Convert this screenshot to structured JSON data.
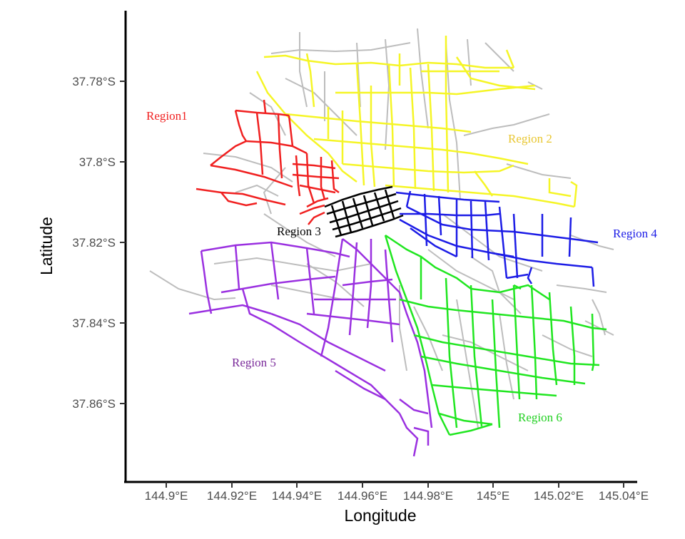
{
  "axes": {
    "xlabel": "Longitude",
    "ylabel": "Latitude",
    "x_ticks": [
      "144.9°E",
      "144.92°E",
      "144.94°E",
      "144.96°E",
      "144.98°E",
      "145°E",
      "145.02°E",
      "145.04°E"
    ],
    "y_ticks": [
      "37.78°S",
      "37.8°S",
      "37.82°S",
      "37.84°S",
      "37.86°S"
    ]
  },
  "regions": [
    {
      "label": "Region1",
      "color": "#f02020"
    },
    {
      "label": "Region 2",
      "color": "#f5f526"
    },
    {
      "label": "Region 3",
      "color": "#000000"
    },
    {
      "label": "Region 4",
      "color": "#1c1ce6"
    },
    {
      "label": "Region 5",
      "color": "#9a30e0"
    },
    {
      "label": "Region 6",
      "color": "#20e620"
    }
  ],
  "label_colors": {
    "Region1": "#f02020",
    "Region 2": "#e8c630",
    "Region 3": "#000000",
    "Region 4": "#1c1ce6",
    "Region 5": "#7a2a9a",
    "Region 6": "#20d020"
  },
  "other_roads_color": "#bdbdbd"
}
